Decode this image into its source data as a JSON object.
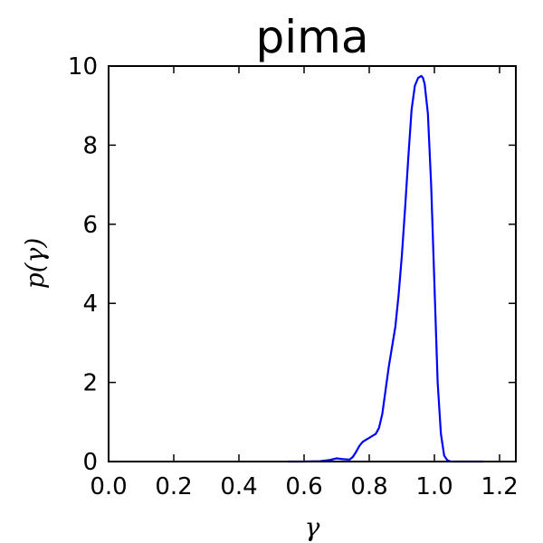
{
  "chart_data": {
    "type": "line",
    "title": "pima",
    "xlabel": "γ",
    "ylabel": "p(γ)",
    "xlim": [
      0.0,
      1.25
    ],
    "ylim": [
      0,
      10
    ],
    "xticks": [
      "0.0",
      "0.2",
      "0.4",
      "0.6",
      "0.8",
      "1.0",
      "1.2"
    ],
    "yticks": [
      "0",
      "2",
      "4",
      "6",
      "8",
      "10"
    ],
    "grid": false,
    "series": [
      {
        "color": "#0000ff",
        "x": [
          0.55,
          0.6,
          0.65,
          0.68,
          0.7,
          0.72,
          0.74,
          0.75,
          0.76,
          0.77,
          0.78,
          0.79,
          0.8,
          0.81,
          0.82,
          0.83,
          0.84,
          0.85,
          0.86,
          0.87,
          0.88,
          0.89,
          0.9,
          0.91,
          0.92,
          0.93,
          0.94,
          0.95,
          0.96,
          0.965,
          0.97,
          0.98,
          0.99,
          1.0,
          1.01,
          1.02,
          1.03,
          1.04,
          1.05,
          1.07,
          1.1,
          1.15
        ],
        "y": [
          0,
          0,
          0.01,
          0.04,
          0.08,
          0.06,
          0.05,
          0.12,
          0.25,
          0.4,
          0.5,
          0.55,
          0.6,
          0.65,
          0.7,
          0.85,
          1.2,
          1.8,
          2.4,
          2.9,
          3.4,
          4.2,
          5.2,
          6.4,
          7.7,
          8.9,
          9.5,
          9.7,
          9.75,
          9.7,
          9.55,
          8.8,
          7.0,
          4.5,
          2.0,
          0.7,
          0.15,
          0.03,
          0,
          0,
          0,
          0
        ]
      }
    ]
  }
}
